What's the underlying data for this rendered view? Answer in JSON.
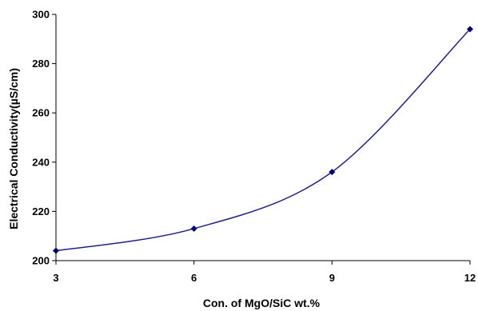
{
  "chart_data": {
    "type": "line",
    "xlabel": "Con. of MgO/SiC wt.%",
    "ylabel": "Electrical Conductivity(µS/cm)",
    "x": [
      3,
      6,
      9,
      12
    ],
    "series": [
      {
        "values": [
          204,
          213,
          236,
          294
        ]
      }
    ],
    "xlim": [
      3,
      12
    ],
    "ylim": [
      200,
      300
    ],
    "xticks": [
      3,
      6,
      9,
      12
    ],
    "yticks": [
      200,
      220,
      240,
      260,
      280,
      300
    ],
    "grid": false,
    "smooth": true,
    "marker": "diamond",
    "line_color": "#1f1f8c",
    "marker_color": "#00007f"
  }
}
